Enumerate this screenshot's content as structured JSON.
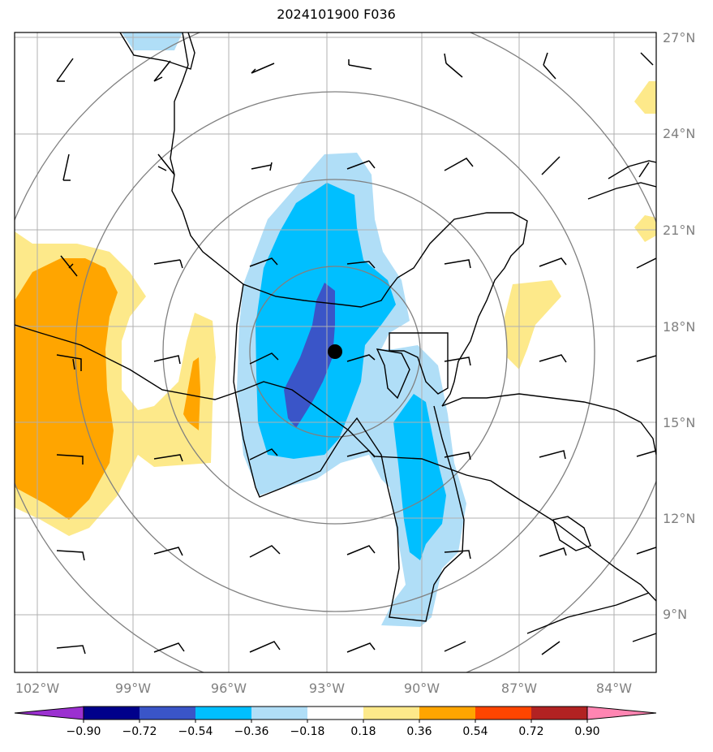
{
  "title": "2024101900 F036",
  "lon_labels": [
    "102°W",
    "99°W",
    "96°W",
    "93°W",
    "90°W",
    "87°W",
    "84°W"
  ],
  "lat_labels": [
    "27°N",
    "24°N",
    "21°N",
    "18°N",
    "15°N",
    "12°N",
    "9°N"
  ],
  "colorbar": {
    "ticks": [
      "−0.90",
      "−0.72",
      "−0.54",
      "−0.36",
      "−0.18",
      "0.18",
      "0.36",
      "0.54",
      "0.72",
      "0.90"
    ],
    "colors": [
      "#9b30d0",
      "#00008b",
      "#3a55c8",
      "#00bfff",
      "#b0def7",
      "#ffffff",
      "#fde98a",
      "#ffa500",
      "#ff4500",
      "#b22222",
      "#ff85b2"
    ]
  },
  "colors": {
    "positive_1": "#fde98a",
    "positive_2": "#ffa500",
    "negative_1": "#b0def7",
    "negative_2": "#00bfff",
    "negative_3": "#3a55c8",
    "range_rings": "#808080",
    "gridlines": "#b0b0b0",
    "coastline": "#000000"
  },
  "storm_center": {
    "lat": "17.2°N",
    "lon": "92.7°W",
    "icon": "filled-circle"
  }
}
